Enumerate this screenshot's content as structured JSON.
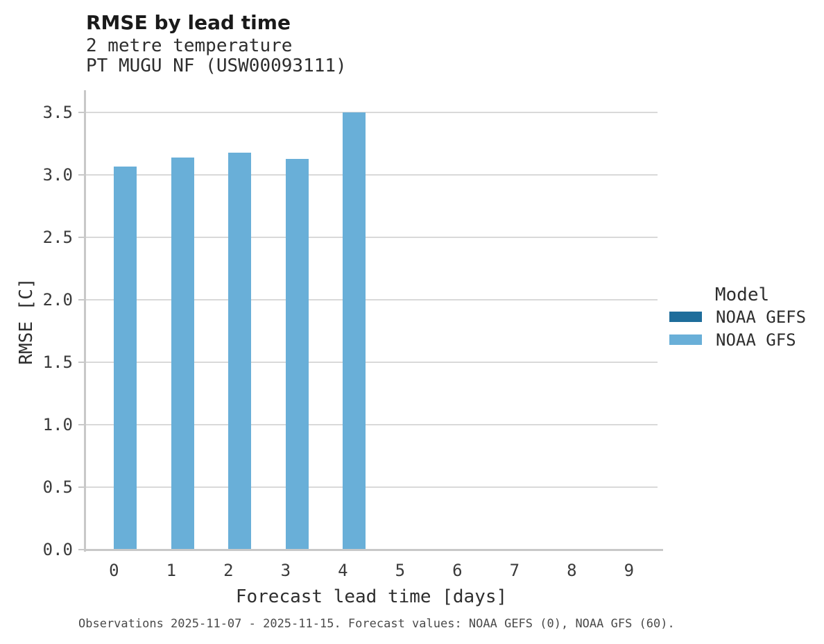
{
  "header": {
    "title": "RMSE by lead time",
    "subtitle_line1": "2 metre temperature",
    "subtitle_line2": "PT MUGU NF (USW00093111)"
  },
  "caption": "Observations 2025-11-07 - 2025-11-15. Forecast values: NOAA GEFS (0), NOAA GFS (60).",
  "colors": {
    "bar_noaa_gefs": "#1e6d9b",
    "bar_noaa_gfs": "#69afd8",
    "gridline": "#d9d9d9",
    "axis_line": "#c8c8c8",
    "title_text": "#1a1a1a",
    "text": "#2e2e2e",
    "caption_text": "#4a4a4a"
  },
  "chart_data": {
    "type": "bar",
    "title": "RMSE by lead time",
    "subtitle": [
      "2 metre temperature",
      "PT MUGU NF (USW00093111)"
    ],
    "xlabel": "Forecast lead time [days]",
    "ylabel": "RMSE [C]",
    "categories": [
      "0",
      "1",
      "2",
      "3",
      "4",
      "5",
      "6",
      "7",
      "8",
      "9"
    ],
    "series": [
      {
        "name": "NOAA GEFS",
        "color": "#1e6d9b",
        "values": [
          null,
          null,
          null,
          null,
          null,
          null,
          null,
          null,
          null,
          null
        ]
      },
      {
        "name": "NOAA GFS",
        "color": "#69afd8",
        "values": [
          3.07,
          3.14,
          3.18,
          3.13,
          3.5,
          null,
          null,
          null,
          null,
          null
        ]
      }
    ],
    "ylim": [
      0,
      3.68
    ],
    "yticks": [
      0.0,
      0.5,
      1.0,
      1.5,
      2.0,
      2.5,
      3.0,
      3.5
    ],
    "ytick_format_decimals": 1,
    "grid": "horizontal",
    "legend_title": "Model",
    "legend_position": "right"
  }
}
